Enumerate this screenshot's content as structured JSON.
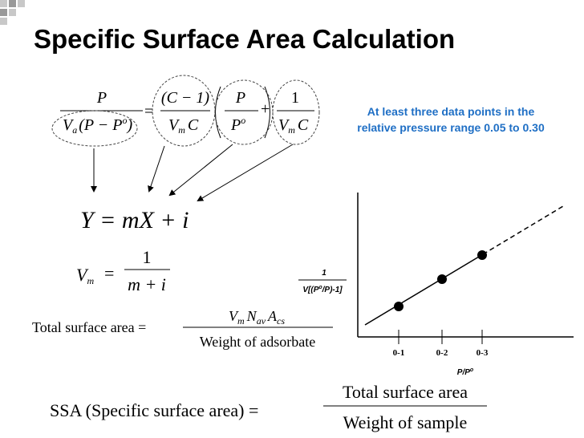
{
  "title": "Specific Surface Area Calculation",
  "note": [
    "At least three data points in the",
    "relative pressure range 0.05 to 0.30"
  ],
  "bet": {
    "lhs_num": "P",
    "lhs_den": [
      "V",
      "a",
      "(P − P",
      "o",
      ")"
    ],
    "eq": "=",
    "t1_num": "(C − 1)",
    "t1_den": [
      "V",
      "m",
      "C"
    ],
    "t2_num": "P",
    "t2_den": [
      "P",
      "o"
    ],
    "plus": "+",
    "t3_num": "1",
    "t3_den": [
      "V",
      "m",
      "C"
    ]
  },
  "linear": "Y = mX + i",
  "vm": {
    "lhs": [
      "V",
      "m"
    ],
    "eq": "=",
    "num": "1",
    "den": "m + i"
  },
  "tsa": {
    "lhs": "Total surface area =",
    "num": [
      "V",
      "m",
      "N",
      "av",
      "A",
      "cs"
    ],
    "den": "Weight of adsorbate"
  },
  "ssa": {
    "lhs": "SSA (Specific surface area) =",
    "num": "Total surface area",
    "den": "Weight of sample"
  },
  "graph": {
    "y_label_num": "1",
    "y_label_den": [
      "V[(P",
      "o",
      "/P)-1]"
    ],
    "x_ticks": [
      "0-1",
      "0-2",
      "0-3"
    ],
    "x_label": [
      "P/P",
      "o"
    ]
  }
}
